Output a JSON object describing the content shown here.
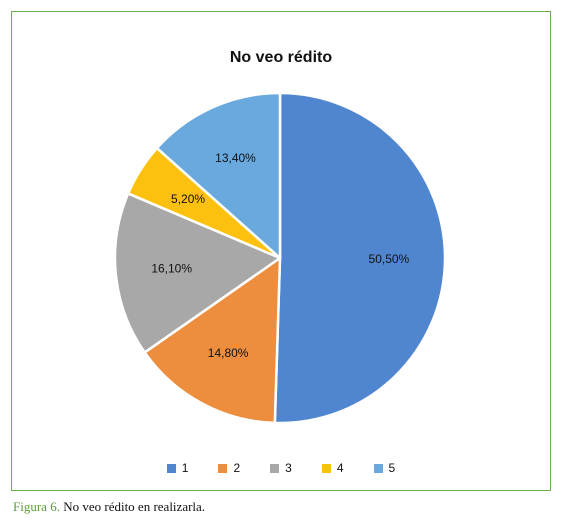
{
  "figure": {
    "caption_label": "Figura 6.",
    "caption_text": " No veo rédito en realizarla."
  },
  "chart_data": {
    "type": "pie",
    "title": "No veo rédito",
    "slices": [
      {
        "name": "1",
        "value": 50.5,
        "label": "50,50%",
        "color": "#5086d0"
      },
      {
        "name": "2",
        "value": 14.8,
        "label": "14,80%",
        "color": "#ed8d3e"
      },
      {
        "name": "3",
        "value": 16.1,
        "label": "16,10%",
        "color": "#a8a8a8"
      },
      {
        "name": "4",
        "value": 5.2,
        "label": "5,20%",
        "color": "#fcc10f"
      },
      {
        "name": "5",
        "value": 13.4,
        "label": "13,40%",
        "color": "#6aa9de"
      }
    ],
    "start": "top",
    "direction": "clockwise",
    "legend_position": "bottom"
  }
}
